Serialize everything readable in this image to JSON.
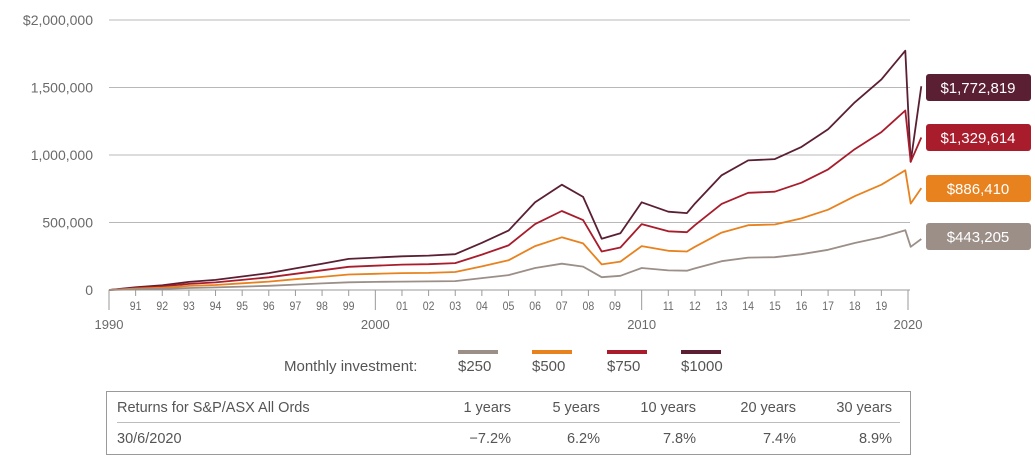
{
  "chart_data": {
    "type": "line",
    "title": "",
    "xlabel": "",
    "ylabel": "",
    "ylim": [
      0,
      2000000
    ],
    "xlim": [
      1990,
      2020
    ],
    "y_ticks": [
      {
        "value": 0,
        "label": "0"
      },
      {
        "value": 500000,
        "label": "500,000"
      },
      {
        "value": 1000000,
        "label": "1,000,000"
      },
      {
        "value": 1500000,
        "label": "1,500,000"
      },
      {
        "value": 2000000,
        "label": "$2,000,000"
      }
    ],
    "x_major_ticks": [
      {
        "value": 1990,
        "label": "1990"
      },
      {
        "value": 2000,
        "label": "2000"
      },
      {
        "value": 2010,
        "label": "2010"
      },
      {
        "value": 2020,
        "label": "2020"
      }
    ],
    "x_minor_ticks": [
      {
        "value": 1991,
        "label": "91"
      },
      {
        "value": 1992,
        "label": "92"
      },
      {
        "value": 1993,
        "label": "93"
      },
      {
        "value": 1994,
        "label": "94"
      },
      {
        "value": 1995,
        "label": "95"
      },
      {
        "value": 1996,
        "label": "96"
      },
      {
        "value": 1997,
        "label": "97"
      },
      {
        "value": 1998,
        "label": "98"
      },
      {
        "value": 1999,
        "label": "99"
      },
      {
        "value": 2001,
        "label": "01"
      },
      {
        "value": 2002,
        "label": "02"
      },
      {
        "value": 2003,
        "label": "03"
      },
      {
        "value": 2004,
        "label": "04"
      },
      {
        "value": 2005,
        "label": "05"
      },
      {
        "value": 2006,
        "label": "06"
      },
      {
        "value": 2007,
        "label": "07"
      },
      {
        "value": 2008,
        "label": "08"
      },
      {
        "value": 2009,
        "label": "09"
      },
      {
        "value": 2011,
        "label": "11"
      },
      {
        "value": 2012,
        "label": "12"
      },
      {
        "value": 2013,
        "label": "13"
      },
      {
        "value": 2014,
        "label": "14"
      },
      {
        "value": 2015,
        "label": "15"
      },
      {
        "value": 2016,
        "label": "16"
      },
      {
        "value": 2017,
        "label": "17"
      },
      {
        "value": 2018,
        "label": "18"
      },
      {
        "value": 2019,
        "label": "19"
      }
    ],
    "x": [
      1990,
      1991,
      1992,
      1993,
      1994,
      1995,
      1996,
      1997,
      1998,
      1999,
      2000,
      2001,
      2002,
      2003,
      2004,
      2005,
      2006,
      2007,
      2007.8,
      2008.5,
      2009.2,
      2010,
      2011,
      2011.7,
      2012,
      2013,
      2014,
      2015,
      2016,
      2017,
      2018,
      2019,
      2019.9,
      2020.1,
      2020.5
    ],
    "series": [
      {
        "name": "$1000",
        "color": "#5a1f33",
        "end_label": "$1,772,819",
        "values": [
          0,
          20000,
          35000,
          60000,
          75000,
          100000,
          125000,
          160000,
          195000,
          230000,
          240000,
          250000,
          255000,
          265000,
          350000,
          440000,
          650000,
          780000,
          690000,
          380000,
          420000,
          650000,
          580000,
          570000,
          640000,
          850000,
          960000,
          970000,
          1060000,
          1190000,
          1390000,
          1560000,
          1772819,
          950000,
          1510000
        ]
      },
      {
        "name": "$750",
        "color": "#a81c2c",
        "end_label": "$1,329,614",
        "values": [
          0,
          15000,
          26000,
          45000,
          56000,
          75000,
          94000,
          120000,
          146000,
          172000,
          180000,
          188000,
          191000,
          199000,
          262000,
          330000,
          488000,
          585000,
          518000,
          285000,
          315000,
          488000,
          435000,
          428000,
          480000,
          638000,
          720000,
          728000,
          795000,
          893000,
          1043000,
          1170000,
          1329614,
          950000,
          1130000
        ]
      },
      {
        "name": "$500",
        "color": "#e8821e",
        "end_label": "$886,410",
        "values": [
          0,
          10000,
          17000,
          30000,
          37000,
          50000,
          62000,
          80000,
          97000,
          115000,
          120000,
          125000,
          127000,
          133000,
          175000,
          220000,
          325000,
          390000,
          345000,
          190000,
          210000,
          325000,
          290000,
          285000,
          320000,
          425000,
          480000,
          485000,
          530000,
          595000,
          695000,
          780000,
          886410,
          640000,
          755000
        ]
      },
      {
        "name": "$250",
        "color": "#9b8f88",
        "end_label": "$443,205",
        "values": [
          0,
          5000,
          9000,
          15000,
          19000,
          25000,
          31000,
          40000,
          49000,
          57000,
          60000,
          62000,
          64000,
          66000,
          88000,
          110000,
          163000,
          195000,
          173000,
          95000,
          105000,
          163000,
          145000,
          143000,
          160000,
          213000,
          240000,
          243000,
          265000,
          298000,
          348000,
          390000,
          443205,
          320000,
          378000
        ]
      }
    ]
  },
  "legend": {
    "label": "Monthly investment:",
    "items": [
      {
        "label": "$250",
        "color": "#9b8f88"
      },
      {
        "label": "$500",
        "color": "#e8821e"
      },
      {
        "label": "$750",
        "color": "#a81c2c"
      },
      {
        "label": "$1000",
        "color": "#5a1f33"
      }
    ]
  },
  "returns_table": {
    "header_label": "Returns for S&P/ASX All Ords",
    "date_label": "30/6/2020",
    "columns": [
      "1 years",
      "5 years",
      "10 years",
      "20 years",
      "30 years"
    ],
    "values": [
      "−7.2%",
      "6.2%",
      "7.8%",
      "7.4%",
      "8.9%"
    ]
  }
}
